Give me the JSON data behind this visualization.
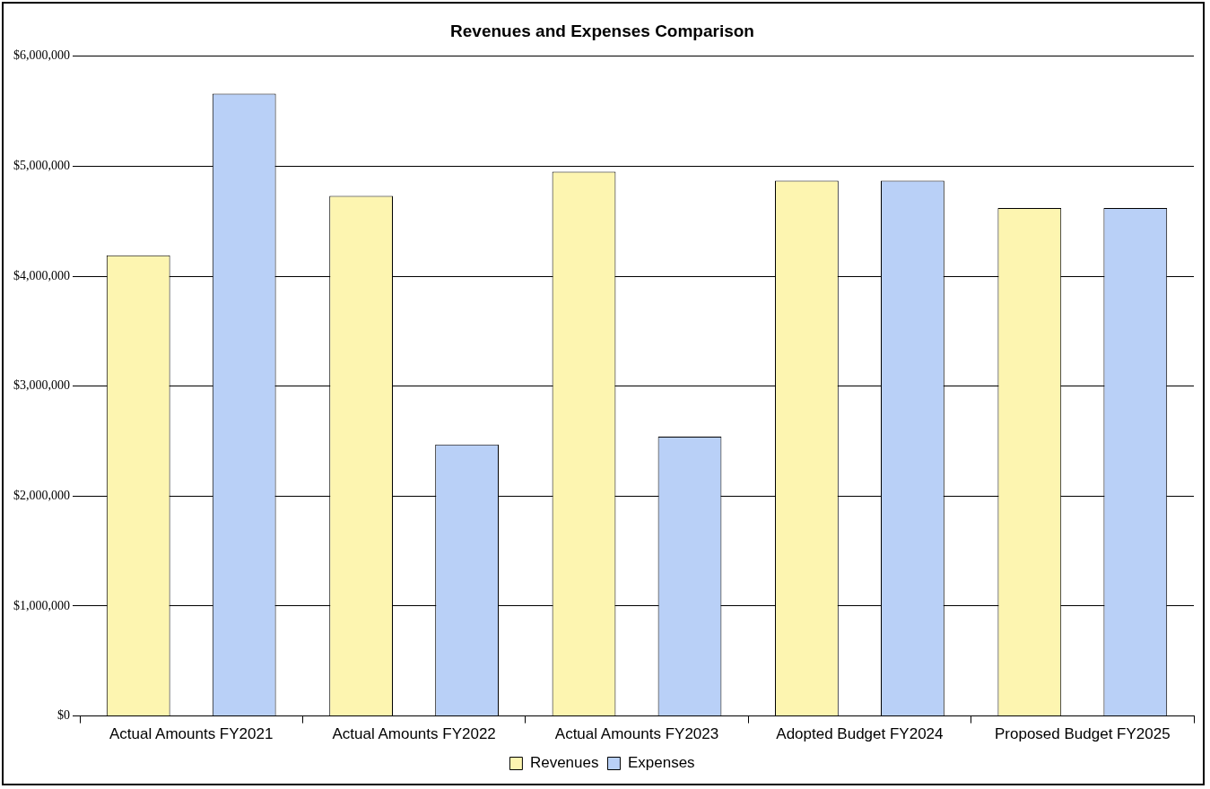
{
  "chart_data": {
    "type": "bar",
    "title": "Revenues and Expenses Comparison",
    "categories": [
      "Actual Amounts FY2021",
      "Actual Amounts FY2022",
      "Actual Amounts FY2023",
      "Adopted Budget FY2024",
      "Proposed Budget FY2025"
    ],
    "series": [
      {
        "name": "Revenues",
        "color": "#fdf5b0",
        "values": [
          4190000,
          4730000,
          4950000,
          4870000,
          4620000
        ]
      },
      {
        "name": "Expenses",
        "color": "#b9d0f7",
        "values": [
          5660000,
          2470000,
          2540000,
          4870000,
          4620000
        ]
      }
    ],
    "ylim": [
      0,
      6000000
    ],
    "yticks": [
      {
        "value": 0,
        "label": "$0"
      },
      {
        "value": 1000000,
        "label": "$1,000,000"
      },
      {
        "value": 2000000,
        "label": "$2,000,000"
      },
      {
        "value": 3000000,
        "label": "$3,000,000"
      },
      {
        "value": 4000000,
        "label": "$4,000,000"
      },
      {
        "value": 5000000,
        "label": "$5,000,000"
      },
      {
        "value": 6000000,
        "label": "$6,000,000"
      }
    ],
    "grid": "y",
    "legend": "bottom"
  }
}
